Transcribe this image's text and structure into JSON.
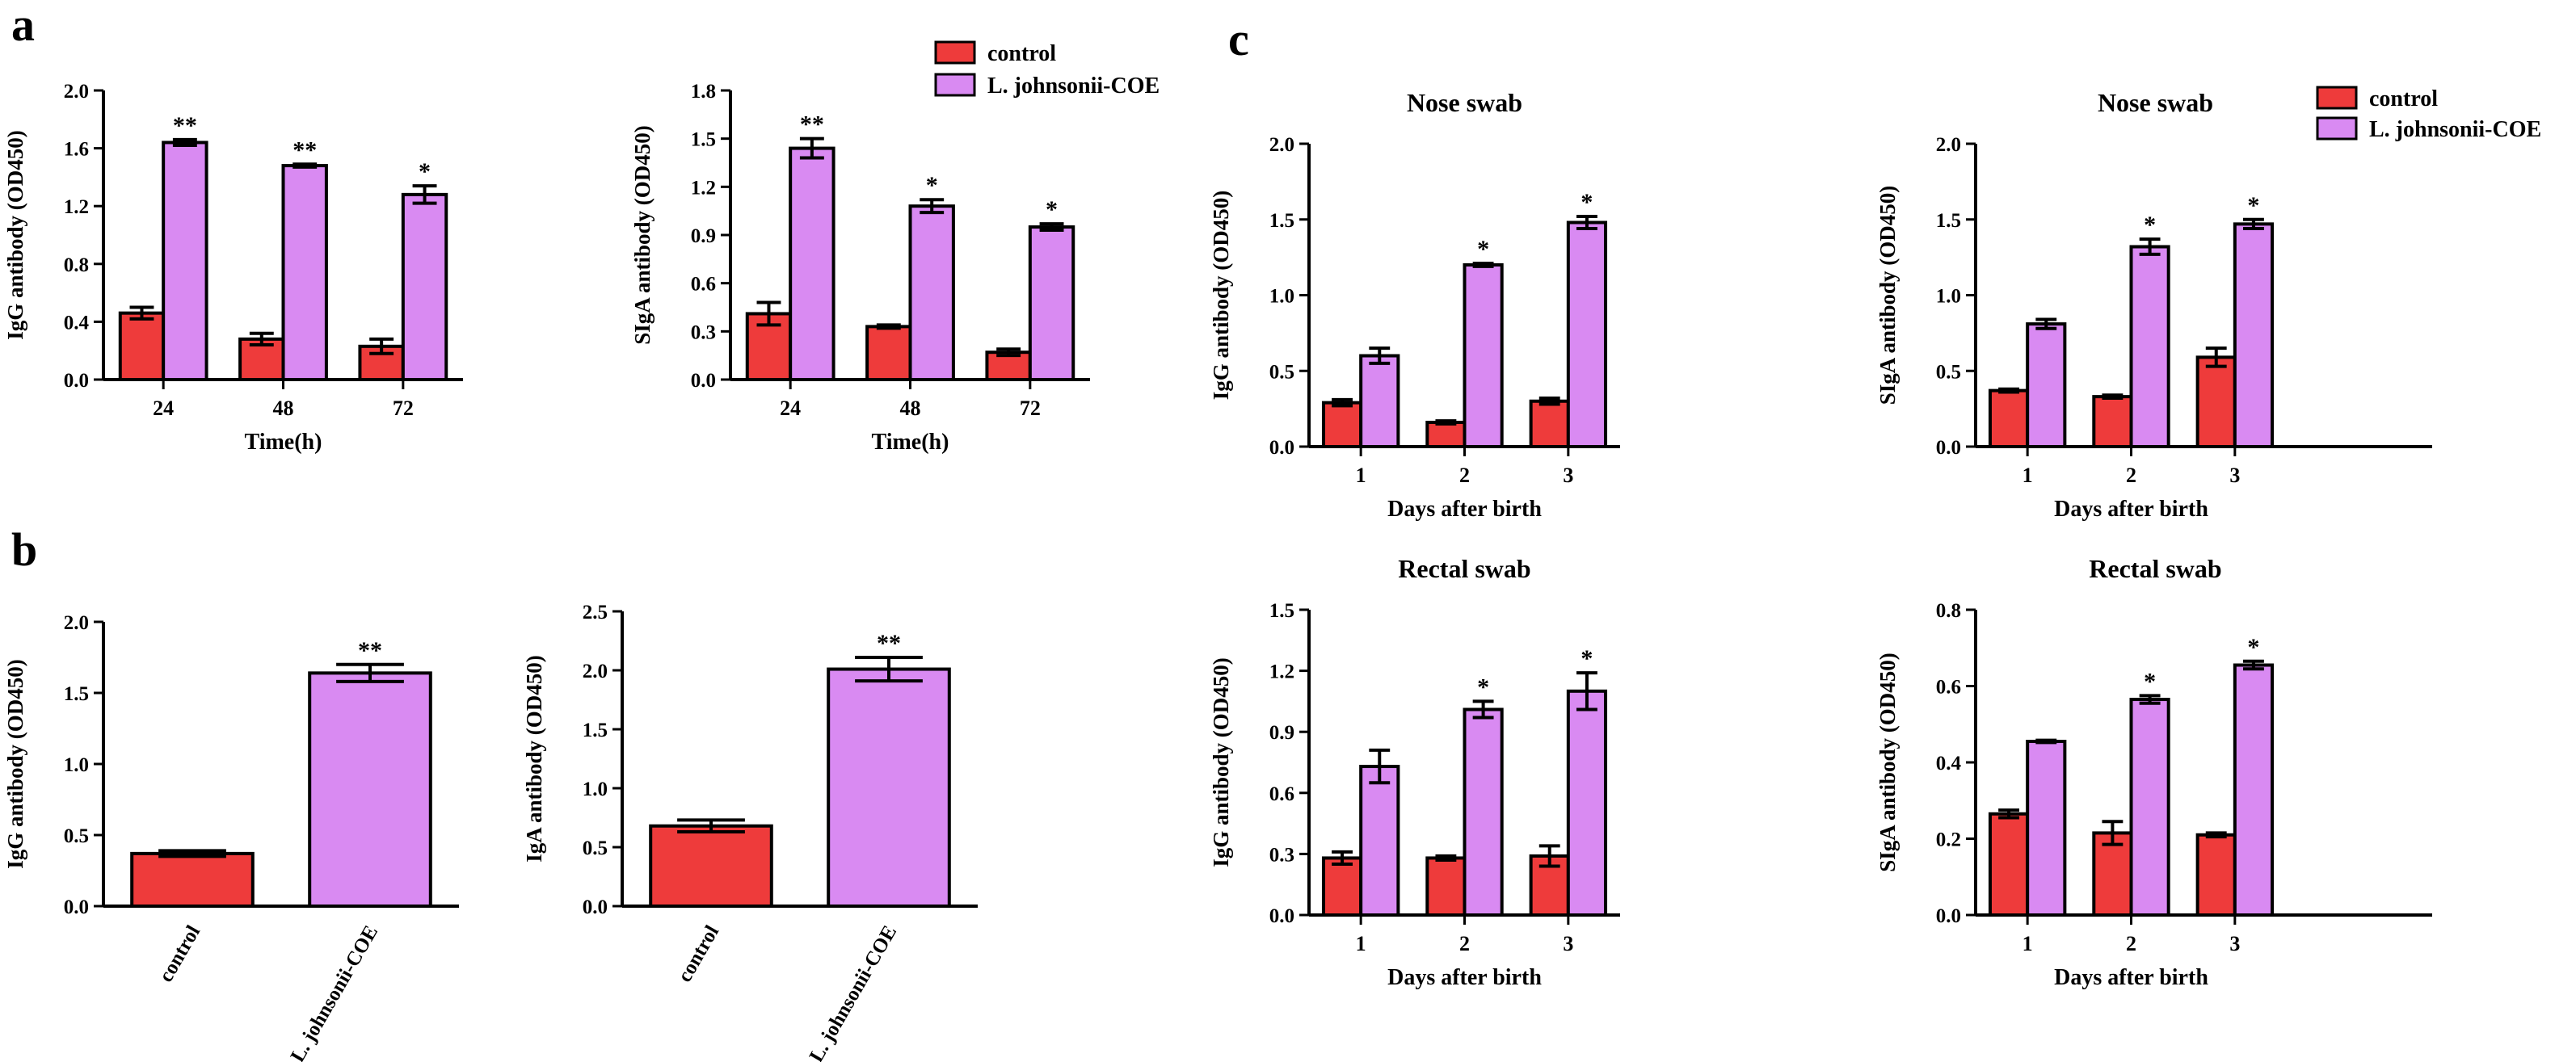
{
  "panel_labels": {
    "a": "a",
    "b": "b",
    "c": "c"
  },
  "colors": {
    "control": "#EE3B3B",
    "treated": "#D98AF2",
    "stroke": "#000000"
  },
  "legend": {
    "control": "control",
    "treated": "L. johnsonii-COE"
  },
  "chart_data": [
    {
      "id": "a1",
      "type": "bar",
      "title": "",
      "xlabel": "Time(h)",
      "ylabel": "IgG antibody (OD450)",
      "categories": [
        "24",
        "48",
        "72"
      ],
      "ylim": [
        0,
        2.0
      ],
      "yticks": [
        "0.0",
        "0.4",
        "0.8",
        "1.2",
        "1.6",
        "2.0"
      ],
      "series": [
        {
          "name": "control",
          "values": [
            0.46,
            0.28,
            0.23
          ],
          "errors": [
            0.04,
            0.04,
            0.05
          ]
        },
        {
          "name": "L. johnsonii-COE",
          "values": [
            1.64,
            1.48,
            1.28
          ],
          "errors": [
            0.02,
            0.01,
            0.06
          ]
        }
      ],
      "annotations": [
        "**",
        "**",
        "*"
      ]
    },
    {
      "id": "a2",
      "type": "bar",
      "title": "",
      "xlabel": "Time(h)",
      "ylabel": "SIgA antibody (OD450)",
      "categories": [
        "24",
        "48",
        "72"
      ],
      "ylim": [
        0,
        1.8
      ],
      "yticks": [
        "0.0",
        "0.3",
        "0.6",
        "0.9",
        "1.2",
        "1.5",
        "1.8"
      ],
      "series": [
        {
          "name": "control",
          "values": [
            0.41,
            0.33,
            0.17
          ],
          "errors": [
            0.07,
            0.01,
            0.02
          ]
        },
        {
          "name": "L. johnsonii-COE",
          "values": [
            1.44,
            1.08,
            0.95
          ],
          "errors": [
            0.06,
            0.04,
            0.02
          ]
        }
      ],
      "annotations": [
        "**",
        "*",
        "*"
      ]
    },
    {
      "id": "b1",
      "type": "bar",
      "title": "",
      "xlabel": "",
      "ylabel": "IgG antibody (OD450)",
      "categories": [
        "control",
        "L. johnsonii-COE"
      ],
      "ylim": [
        0,
        2.0
      ],
      "yticks": [
        "0.0",
        "0.5",
        "1.0",
        "1.5",
        "2.0"
      ],
      "series": [
        {
          "name": "values",
          "values": [
            0.37,
            1.64
          ],
          "errors": [
            0.02,
            0.06
          ]
        }
      ],
      "annotations": [
        "",
        "**"
      ]
    },
    {
      "id": "b2",
      "type": "bar",
      "title": "",
      "xlabel": "",
      "ylabel": "IgA antibody (OD450)",
      "categories": [
        "control",
        "L. johnsonii-COE"
      ],
      "ylim": [
        0,
        2.5
      ],
      "yticks": [
        "0.0",
        "0.5",
        "1.0",
        "1.5",
        "2.0",
        "2.5"
      ],
      "series": [
        {
          "name": "values",
          "values": [
            0.68,
            2.01
          ],
          "errors": [
            0.05,
            0.1
          ]
        }
      ],
      "annotations": [
        "",
        "**"
      ]
    },
    {
      "id": "c1",
      "type": "bar",
      "title": "Nose swab",
      "xlabel": "Days after birth",
      "ylabel": "IgG antibody (OD450)",
      "categories": [
        "1",
        "2",
        "3"
      ],
      "ylim": [
        0,
        2.0
      ],
      "yticks": [
        "0.0",
        "0.5",
        "1.0",
        "1.5",
        "2.0"
      ],
      "series": [
        {
          "name": "control",
          "values": [
            0.29,
            0.16,
            0.3
          ],
          "errors": [
            0.02,
            0.01,
            0.02
          ]
        },
        {
          "name": "L. johnsonii-COE",
          "values": [
            0.6,
            1.2,
            1.48
          ],
          "errors": [
            0.05,
            0.01,
            0.04
          ]
        }
      ],
      "annotations": [
        "",
        "*",
        "*"
      ]
    },
    {
      "id": "c2",
      "type": "bar",
      "title": "Nose swab",
      "xlabel": "Days after birth",
      "ylabel": "SIgA antibody (OD450)",
      "categories": [
        "1",
        "2",
        "3"
      ],
      "ylim": [
        0,
        2.0
      ],
      "yticks": [
        "0.0",
        "0.5",
        "1.0",
        "1.5",
        "2.0"
      ],
      "series": [
        {
          "name": "control",
          "values": [
            0.37,
            0.33,
            0.59
          ],
          "errors": [
            0.01,
            0.01,
            0.06
          ]
        },
        {
          "name": "L. johnsonii-COE",
          "values": [
            0.81,
            1.32,
            1.47
          ],
          "errors": [
            0.03,
            0.05,
            0.03
          ]
        }
      ],
      "annotations": [
        "",
        "*",
        "*"
      ]
    },
    {
      "id": "c3",
      "type": "bar",
      "title": "Rectal swab",
      "xlabel": "Days after birth",
      "ylabel": "IgG antibody (OD450)",
      "categories": [
        "1",
        "2",
        "3"
      ],
      "ylim": [
        0,
        1.5
      ],
      "yticks": [
        "0.0",
        "0.3",
        "0.6",
        "0.9",
        "1.2",
        "1.5"
      ],
      "series": [
        {
          "name": "control",
          "values": [
            0.28,
            0.28,
            0.29
          ],
          "errors": [
            0.03,
            0.01,
            0.05
          ]
        },
        {
          "name": "L. johnsonii-COE",
          "values": [
            0.73,
            1.01,
            1.1
          ],
          "errors": [
            0.08,
            0.04,
            0.09
          ]
        }
      ],
      "annotations": [
        "",
        "*",
        "*"
      ]
    },
    {
      "id": "c4",
      "type": "bar",
      "title": "Rectal swab",
      "xlabel": "Days after birth",
      "ylabel": "SIgA antibody (OD450)",
      "categories": [
        "1",
        "2",
        "3"
      ],
      "ylim": [
        0,
        0.8
      ],
      "yticks": [
        "0.0",
        "0.2",
        "0.4",
        "0.6",
        "0.8"
      ],
      "series": [
        {
          "name": "control",
          "values": [
            0.265,
            0.215,
            0.21
          ],
          "errors": [
            0.01,
            0.03,
            0.005
          ]
        },
        {
          "name": "L. johnsonii-COE",
          "values": [
            0.455,
            0.565,
            0.655
          ],
          "errors": [
            0.003,
            0.01,
            0.01
          ]
        }
      ],
      "annotations": [
        "",
        "*",
        "*"
      ]
    }
  ]
}
